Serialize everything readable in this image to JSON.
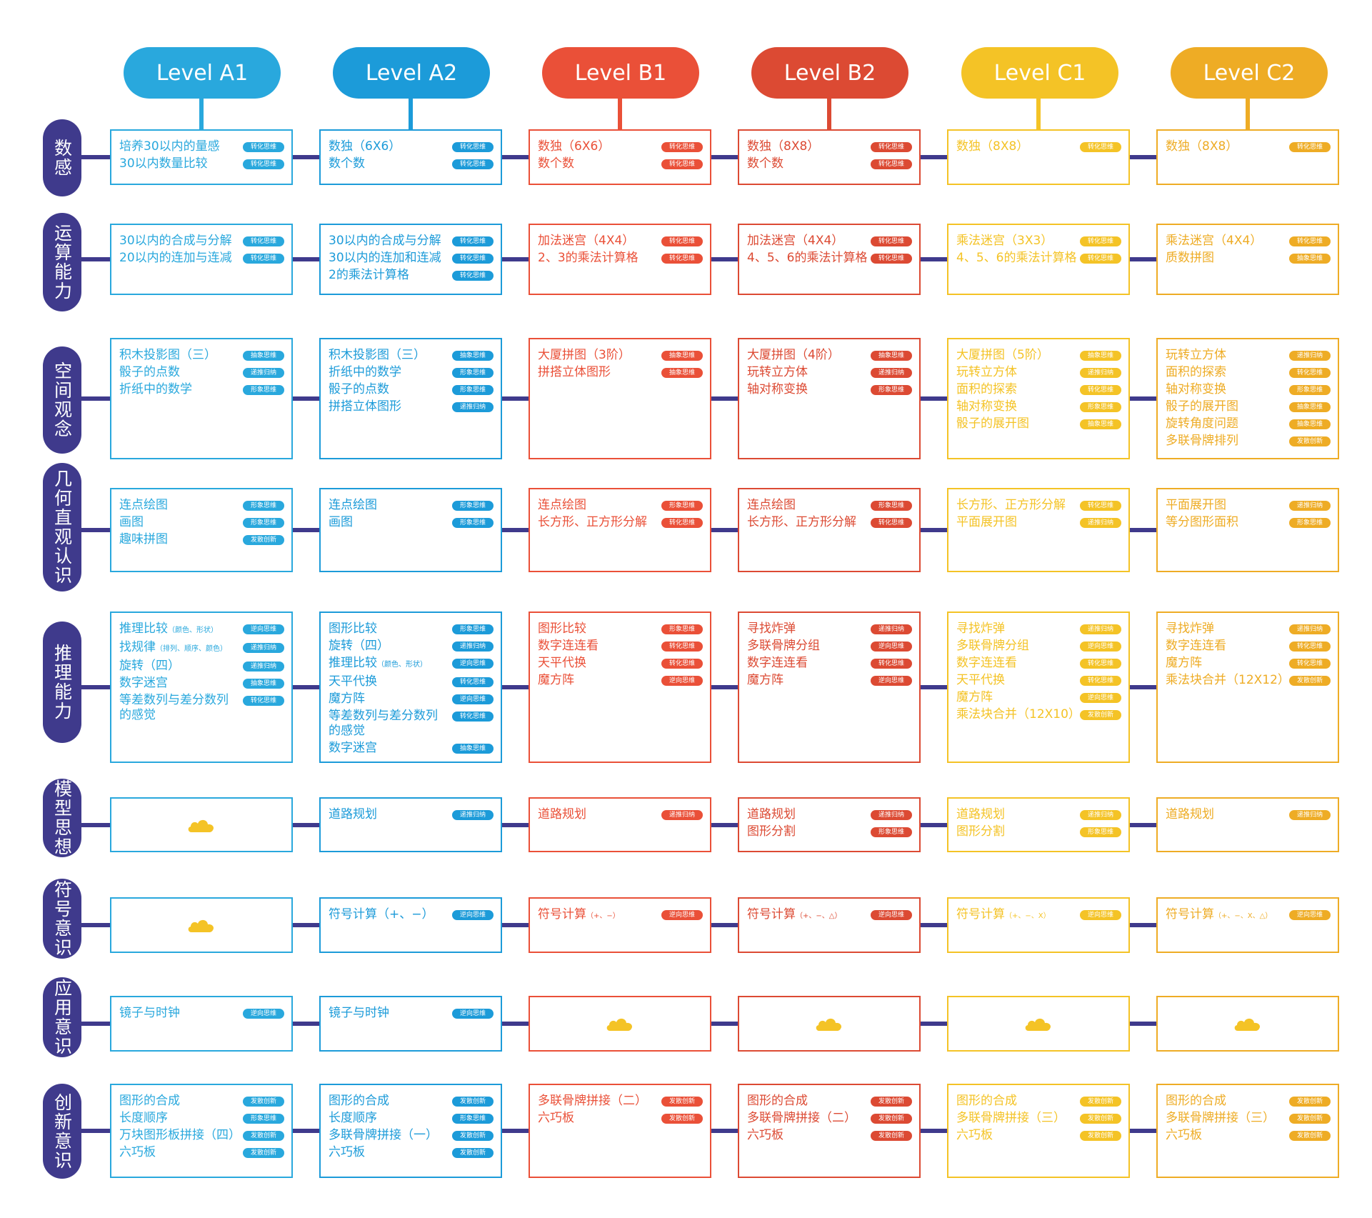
{
  "palette": [
    "#29a8dd",
    "#1c9bd9",
    "#ea5038",
    "#dc4a33",
    "#f4c326",
    "#eeac25"
  ],
  "levels": [
    {
      "label": "Level A1"
    },
    {
      "label": "Level A2"
    },
    {
      "label": "Level B1"
    },
    {
      "label": "Level B2"
    },
    {
      "label": "Level C1"
    },
    {
      "label": "Level C2"
    }
  ],
  "rows": [
    {
      "label": "数感",
      "cells": [
        {
          "items": [
            {
              "text": "培养30以内的量感",
              "tag": "转化思维"
            },
            {
              "text": "30以内数量比较",
              "tag": "转化思维"
            }
          ]
        },
        {
          "items": [
            {
              "text": "数独（6X6）",
              "tag": "转化思维"
            },
            {
              "text": "数个数",
              "tag": "转化思维"
            }
          ]
        },
        {
          "items": [
            {
              "text": "数独（6X6）",
              "tag": "转化思维"
            },
            {
              "text": "数个数",
              "tag": "转化思维"
            }
          ]
        },
        {
          "items": [
            {
              "text": "数独（8X8）",
              "tag": "转化思维"
            },
            {
              "text": "数个数",
              "tag": "转化思维"
            }
          ]
        },
        {
          "items": [
            {
              "text": "数独（8X8）",
              "tag": "转化思维"
            }
          ]
        },
        {
          "items": [
            {
              "text": "数独（8X8）",
              "tag": "转化思维"
            }
          ]
        }
      ]
    },
    {
      "label": "运算能力",
      "cells": [
        {
          "items": [
            {
              "text": "30以内的合成与分解",
              "tag": "转化思维"
            },
            {
              "text": "20以内的连加与连减",
              "tag": "转化思维"
            }
          ]
        },
        {
          "items": [
            {
              "text": "30以内的合成与分解",
              "tag": "转化思维"
            },
            {
              "text": "30以内的连加和连减",
              "tag": "转化思维"
            },
            {
              "text": "2的乘法计算格",
              "tag": "转化思维"
            }
          ]
        },
        {
          "items": [
            {
              "text": "加法迷宫（4X4）",
              "tag": "转化思维"
            },
            {
              "text": "2、3的乘法计算格",
              "tag": "转化思维"
            }
          ]
        },
        {
          "items": [
            {
              "text": "加法迷宫（4X4）",
              "tag": "转化思维"
            },
            {
              "text": "4、5、6的乘法计算格",
              "tag": "转化思维"
            }
          ]
        },
        {
          "items": [
            {
              "text": "乘法迷宫（3X3）",
              "tag": "转化思维"
            },
            {
              "text": "4、5、6的乘法计算格",
              "tag": "转化思维"
            }
          ]
        },
        {
          "items": [
            {
              "text": "乘法迷宫（4X4）",
              "tag": "转化思维"
            },
            {
              "text": "质数拼图",
              "tag": "抽象思维"
            }
          ]
        }
      ]
    },
    {
      "label": "空间观念",
      "cells": [
        {
          "items": [
            {
              "text": "积木投影图（三）",
              "tag": "抽象思维"
            },
            {
              "text": "骰子的点数",
              "tag": "递推归纳"
            },
            {
              "text": "折纸中的数学",
              "tag": "形象思维"
            }
          ]
        },
        {
          "items": [
            {
              "text": "积木投影图（三）",
              "tag": "抽象思维"
            },
            {
              "text": "折纸中的数学",
              "tag": "形象思维"
            },
            {
              "text": "骰子的点数",
              "tag": "形象思维"
            },
            {
              "text": "拼搭立体图形",
              "tag": "递推归纳"
            }
          ]
        },
        {
          "items": [
            {
              "text": "大厦拼图（3阶）",
              "tag": "抽象思维"
            },
            {
              "text": "拼搭立体图形",
              "tag": "抽象思维"
            }
          ]
        },
        {
          "items": [
            {
              "text": "大厦拼图（4阶）",
              "tag": "抽象思维"
            },
            {
              "text": "玩转立方体",
              "tag": "递推归纳"
            },
            {
              "text": "轴对称变换",
              "tag": "形象思维"
            }
          ]
        },
        {
          "items": [
            {
              "text": "大厦拼图（5阶）",
              "tag": "抽象思维"
            },
            {
              "text": "玩转立方体",
              "tag": "递推归纳"
            },
            {
              "text": "面积的探索",
              "tag": "转化思维"
            },
            {
              "text": "轴对称变换",
              "tag": "形象思维"
            },
            {
              "text": "骰子的展开图",
              "tag": "抽象思维"
            }
          ]
        },
        {
          "items": [
            {
              "text": "玩转立方体",
              "tag": "递推归纳"
            },
            {
              "text": "面积的探索",
              "tag": "转化思维"
            },
            {
              "text": "轴对称变换",
              "tag": "形象思维"
            },
            {
              "text": "骰子的展开图",
              "tag": "抽象思维"
            },
            {
              "text": "旋转角度问题",
              "tag": "抽象思维"
            },
            {
              "text": "多联骨牌排列",
              "tag": "发散创新"
            }
          ]
        }
      ]
    },
    {
      "label": "几何直观认识",
      "cells": [
        {
          "items": [
            {
              "text": "连点绘图",
              "tag": "形象思维"
            },
            {
              "text": "画图",
              "tag": "形象思维"
            },
            {
              "text": "趣味拼图",
              "tag": "发散创新"
            }
          ]
        },
        {
          "items": [
            {
              "text": "连点绘图",
              "tag": "形象思维"
            },
            {
              "text": "画图",
              "tag": "形象思维"
            }
          ]
        },
        {
          "items": [
            {
              "text": "连点绘图",
              "tag": "形象思维"
            },
            {
              "text": "长方形、正方形分解",
              "tag": "转化思维"
            }
          ]
        },
        {
          "items": [
            {
              "text": "连点绘图",
              "tag": "形象思维"
            },
            {
              "text": "长方形、正方形分解",
              "tag": "转化思维"
            }
          ]
        },
        {
          "items": [
            {
              "text": "长方形、正方形分解",
              "tag": "转化思维"
            },
            {
              "text": "平面展开图",
              "tag": "递推归纳"
            }
          ]
        },
        {
          "items": [
            {
              "text": "平面展开图",
              "tag": "递推归纳"
            },
            {
              "text": "等分图形面积",
              "tag": "形象思维"
            }
          ]
        }
      ]
    },
    {
      "label": "推理能力",
      "cells": [
        {
          "items": [
            {
              "text": "推理比较",
              "note": "（颜色、形状）",
              "tag": "逆向思维"
            },
            {
              "text": "找规律",
              "note": "（排列、顺序、颜色）",
              "tag": "递推归纳"
            },
            {
              "text": "旋转（四）",
              "tag": "递推归纳"
            },
            {
              "text": "数字迷宫",
              "tag": "抽象思维"
            },
            {
              "text": "等差数列与差分数列的感觉",
              "tag": "转化思维"
            }
          ]
        },
        {
          "items": [
            {
              "text": "图形比较",
              "tag": "形象思维"
            },
            {
              "text": "旋转（四）",
              "tag": "递推归纳"
            },
            {
              "text": "推理比较",
              "note": "（颜色、形状）",
              "tag": "逆向思维"
            },
            {
              "text": "天平代换",
              "tag": "转化思维"
            },
            {
              "text": "魔方阵",
              "tag": "逆向思维"
            },
            {
              "text": "等差数列与差分数列的感觉",
              "tag": "转化思维"
            },
            {
              "text": "数字迷宫",
              "tag": "抽象思维"
            }
          ]
        },
        {
          "items": [
            {
              "text": "图形比较",
              "tag": "形象思维"
            },
            {
              "text": "数字连连看",
              "tag": "转化思维"
            },
            {
              "text": "天平代换",
              "tag": "转化思维"
            },
            {
              "text": "魔方阵",
              "tag": "逆向思维"
            }
          ]
        },
        {
          "items": [
            {
              "text": "寻找炸弹",
              "tag": "递推归纳"
            },
            {
              "text": "多联骨牌分组",
              "tag": "逆向思维"
            },
            {
              "text": "数字连连看",
              "tag": "转化思维"
            },
            {
              "text": "魔方阵",
              "tag": "逆向思维"
            }
          ]
        },
        {
          "items": [
            {
              "text": "寻找炸弹",
              "tag": "递推归纳"
            },
            {
              "text": "多联骨牌分组",
              "tag": "逆向思维"
            },
            {
              "text": "数字连连看",
              "tag": "转化思维"
            },
            {
              "text": "天平代换",
              "tag": "转化思维"
            },
            {
              "text": "魔方阵",
              "tag": "逆向思维"
            },
            {
              "text": "乘法块合并（12X10）",
              "tag": "发散创新"
            }
          ]
        },
        {
          "items": [
            {
              "text": "寻找炸弹",
              "tag": "递推归纳"
            },
            {
              "text": "数字连连看",
              "tag": "转化思维"
            },
            {
              "text": "魔方阵",
              "tag": "转化思维"
            },
            {
              "text": "乘法块合并（12X12）",
              "tag": "发散创新"
            }
          ]
        }
      ]
    },
    {
      "label": "模型思想",
      "cells": [
        {
          "items": []
        },
        {
          "items": [
            {
              "text": "道路规划",
              "tag": "递推归纳"
            }
          ]
        },
        {
          "items": [
            {
              "text": "道路规划",
              "tag": "递推归纳"
            }
          ]
        },
        {
          "items": [
            {
              "text": "道路规划",
              "tag": "递推归纳"
            },
            {
              "text": "图形分割",
              "tag": "形象思维"
            }
          ]
        },
        {
          "items": [
            {
              "text": "道路规划",
              "tag": "递推归纳"
            },
            {
              "text": "图形分割",
              "tag": "形象思维"
            }
          ]
        },
        {
          "items": [
            {
              "text": "道路规划",
              "tag": "递推归纳"
            }
          ]
        }
      ]
    },
    {
      "label": "符号意识",
      "cells": [
        {
          "items": []
        },
        {
          "items": [
            {
              "text": "符号计算（+、−）",
              "tag": "逆向思维"
            }
          ]
        },
        {
          "items": [
            {
              "text": "符号计算",
              "note": "（+、−）",
              "tag": "逆向思维"
            }
          ]
        },
        {
          "items": [
            {
              "text": "符号计算",
              "note": "（+、−、△）",
              "tag": "逆向思维"
            }
          ]
        },
        {
          "items": [
            {
              "text": "符号计算",
              "note": "（+、−、X）",
              "tag": "逆向思维"
            }
          ]
        },
        {
          "items": [
            {
              "text": "符号计算",
              "note": "（+、−、X、△）",
              "tag": "逆向思维"
            }
          ]
        }
      ]
    },
    {
      "label": "应用意识",
      "cells": [
        {
          "items": [
            {
              "text": "镜子与时钟",
              "tag": "逆向思维"
            }
          ]
        },
        {
          "items": [
            {
              "text": "镜子与时钟",
              "tag": "逆向思维"
            }
          ]
        },
        {
          "items": []
        },
        {
          "items": []
        },
        {
          "items": []
        },
        {
          "items": []
        }
      ]
    },
    {
      "label": "创新意识",
      "cells": [
        {
          "items": [
            {
              "text": "图形的合成",
              "tag": "发散创新"
            },
            {
              "text": "长度顺序",
              "tag": "形象思维"
            },
            {
              "text": "万块图形板拼接（四）",
              "tag": "发散创新"
            },
            {
              "text": "六巧板",
              "tag": "发散创新"
            }
          ]
        },
        {
          "items": [
            {
              "text": "图形的合成",
              "tag": "发散创新"
            },
            {
              "text": "长度顺序",
              "tag": "形象思维"
            },
            {
              "text": "多联骨牌拼接（一）",
              "tag": "发散创新"
            },
            {
              "text": "六巧板",
              "tag": "发散创新"
            }
          ]
        },
        {
          "items": [
            {
              "text": "多联骨牌拼接（二）",
              "tag": "发散创新"
            },
            {
              "text": "六巧板",
              "tag": "发散创新"
            }
          ]
        },
        {
          "items": [
            {
              "text": "图形的合成",
              "tag": "发散创新"
            },
            {
              "text": "多联骨牌拼接（二）",
              "tag": "发散创新"
            },
            {
              "text": "六巧板",
              "tag": "发散创新"
            }
          ]
        },
        {
          "items": [
            {
              "text": "图形的合成",
              "tag": "发散创新"
            },
            {
              "text": "多联骨牌拼接（三）",
              "tag": "发散创新"
            },
            {
              "text": "六巧板",
              "tag": "发散创新"
            }
          ]
        },
        {
          "items": [
            {
              "text": "图形的合成",
              "tag": "发散创新"
            },
            {
              "text": "多联骨牌拼接（三）",
              "tag": "发散创新"
            },
            {
              "text": "六巧板",
              "tag": "发散创新"
            }
          ]
        }
      ]
    }
  ]
}
